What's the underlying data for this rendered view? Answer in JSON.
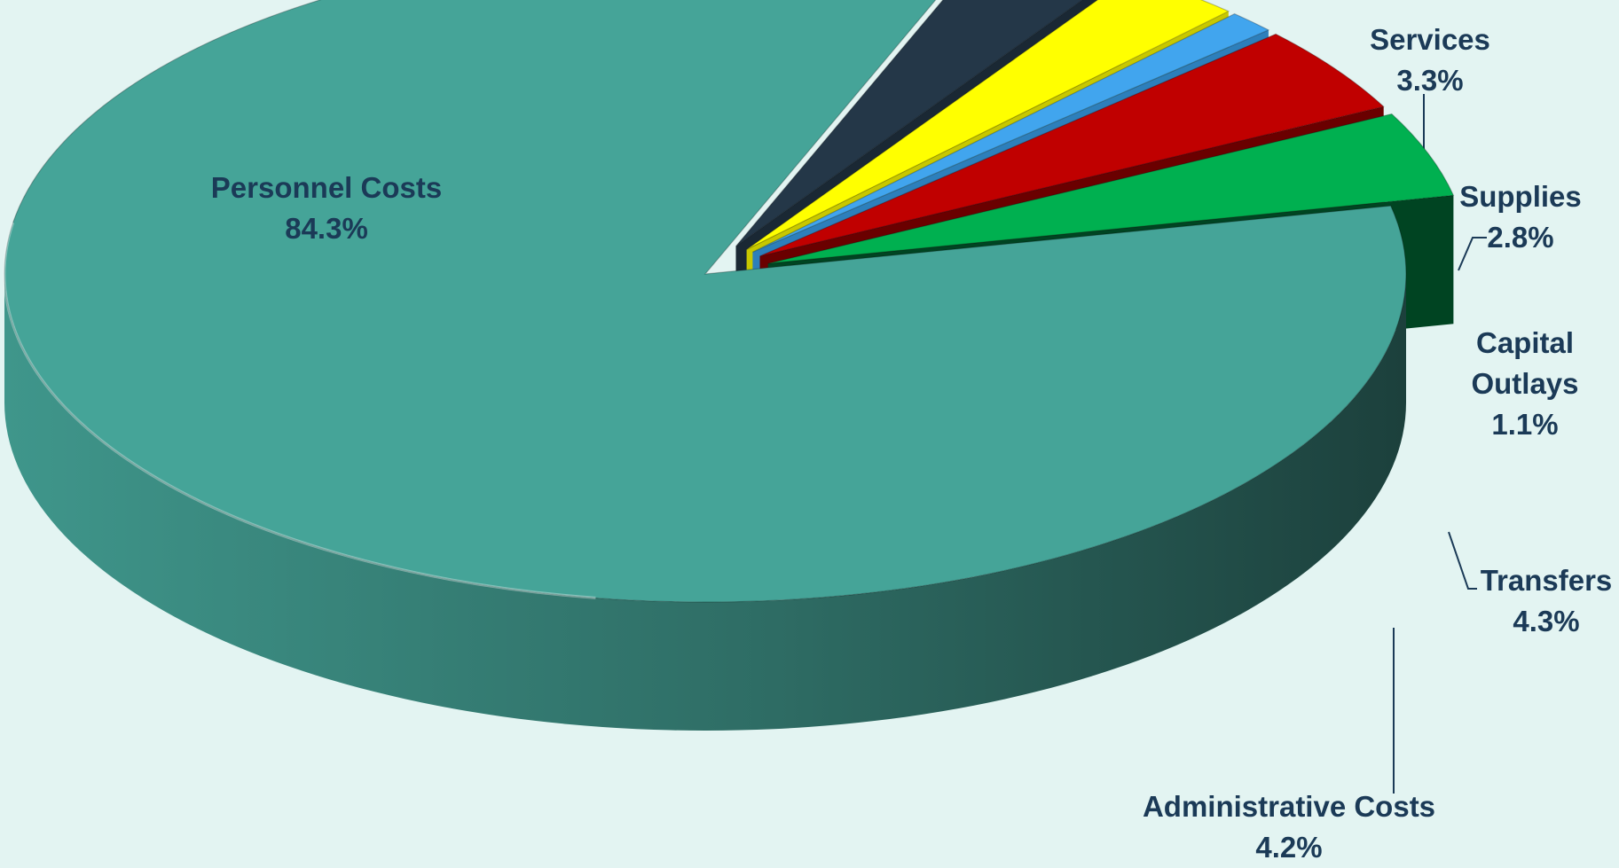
{
  "chart_data": {
    "type": "pie",
    "three_d": true,
    "slices": [
      {
        "name": "Personnel Costs",
        "value": 84.3,
        "label": "84.3%",
        "color": "#45a498",
        "side": "#3a8a80"
      },
      {
        "name": "Services",
        "value": 3.3,
        "label": "3.3%",
        "color": "#243748",
        "side": "#1a2834"
      },
      {
        "name": "Supplies",
        "value": 2.8,
        "label": "2.8%",
        "color": "#ffff00",
        "side": "#c8c800"
      },
      {
        "name": "Capital Outlays",
        "value": 1.1,
        "label": "1.1%",
        "color": "#41a5ee",
        "side": "#2d7fbb"
      },
      {
        "name": "Transfers",
        "value": 4.3,
        "label": "4.3%",
        "color": "#c00000",
        "side": "#6a0000"
      },
      {
        "name": "Administrative Costs",
        "value": 4.2,
        "label": "4.2%",
        "color": "#00b050",
        "side": "#004422"
      }
    ],
    "legend": "none",
    "data_labels": "category-and-percent"
  }
}
